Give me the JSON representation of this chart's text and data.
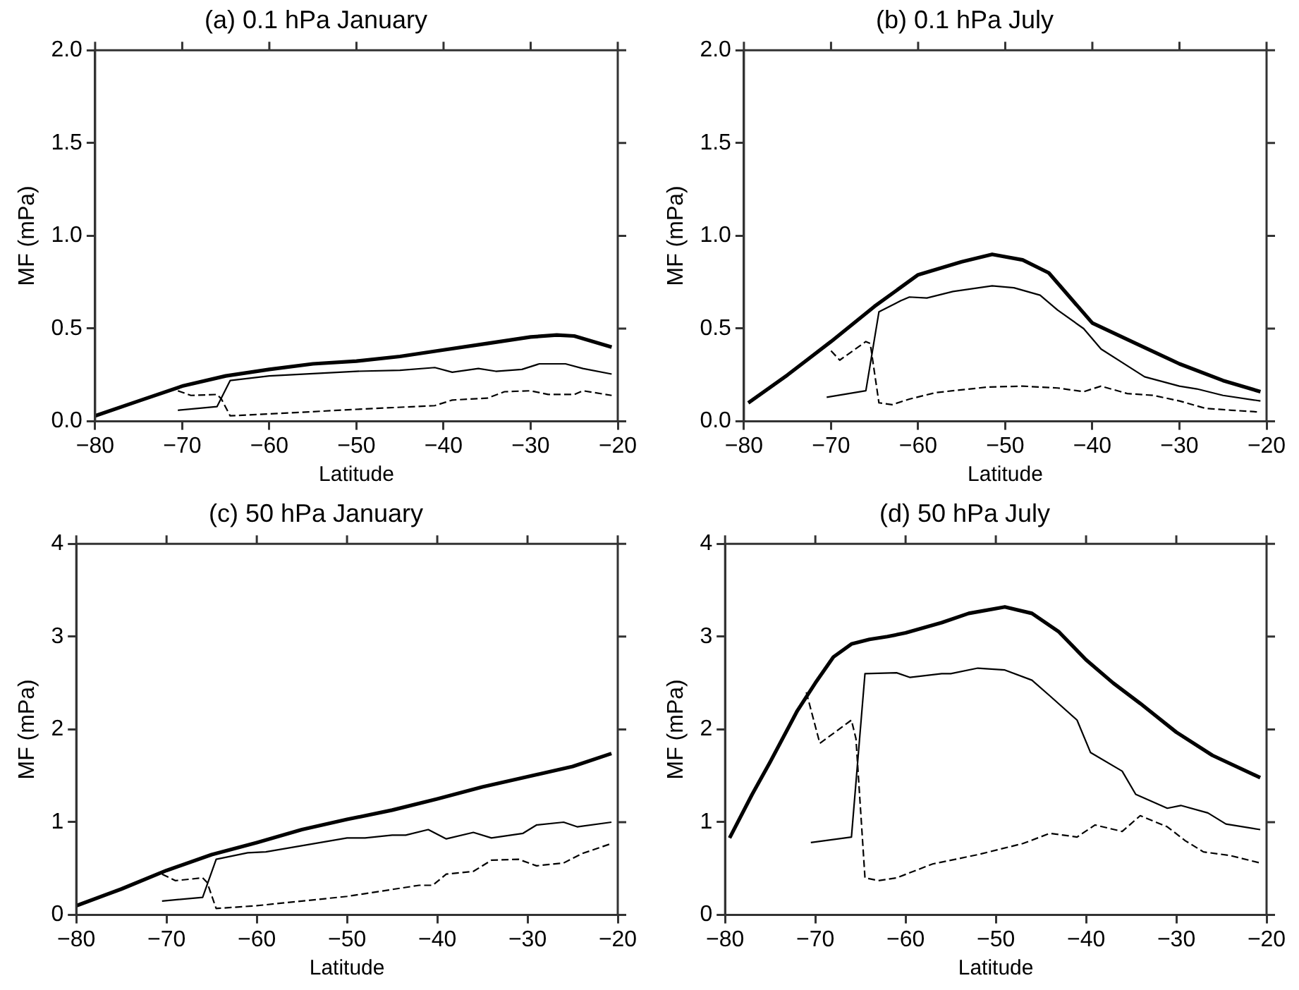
{
  "chart_data": [
    {
      "type": "line",
      "title": "(a) 0.1 hPa January",
      "xlabel": "Latitude",
      "ylabel": "MF (mPa)",
      "xlim": [
        -80,
        -20
      ],
      "ylim": [
        0,
        2
      ],
      "xticks": [
        {
          "value": -80,
          "label": "−80"
        },
        {
          "value": -70,
          "label": "−70"
        },
        {
          "value": -60,
          "label": "−60"
        },
        {
          "value": -50,
          "label": "−50"
        },
        {
          "value": -40,
          "label": "−40"
        },
        {
          "value": -30,
          "label": "−30"
        },
        {
          "value": -20,
          "label": "−20"
        }
      ],
      "yticks": [
        {
          "value": 0,
          "label": "0.0"
        },
        {
          "value": 0.5,
          "label": "0.5"
        },
        {
          "value": 1,
          "label": "1.0"
        },
        {
          "value": 1.5,
          "label": "1.5"
        },
        {
          "value": 2,
          "label": "2.0"
        }
      ],
      "grid": false,
      "legend": false,
      "marker": "none",
      "series": [
        {
          "color": "#000000",
          "line_style": "solid",
          "x": [
            -80,
            -75,
            -70,
            -65,
            -60,
            -55,
            -50,
            -45,
            -40,
            -35,
            -30,
            -27,
            -25,
            -20.7
          ],
          "values": [
            0.03,
            0.11,
            0.19,
            0.245,
            0.28,
            0.31,
            0.325,
            0.35,
            0.385,
            0.42,
            0.455,
            0.465,
            0.46,
            0.4
          ]
        },
        {
          "color": "#000000",
          "line_style": "solid",
          "x": [
            -70.5,
            -66,
            -64.5,
            -60,
            -50,
            -45,
            -41,
            -39,
            -36,
            -34,
            -31,
            -29,
            -26,
            -24,
            -20.7
          ],
          "values": [
            0.06,
            0.08,
            0.22,
            0.245,
            0.27,
            0.275,
            0.29,
            0.265,
            0.285,
            0.27,
            0.28,
            0.31,
            0.31,
            0.285,
            0.255
          ]
        },
        {
          "color": "#000000",
          "line_style": "dashed",
          "x": [
            -70.5,
            -69,
            -66,
            -65.5,
            -64.5,
            -60,
            -50,
            -41,
            -39,
            -35,
            -33,
            -30,
            -28,
            -25,
            -24,
            -20.7
          ],
          "values": [
            0.165,
            0.14,
            0.145,
            0.12,
            0.03,
            0.04,
            0.065,
            0.085,
            0.115,
            0.125,
            0.16,
            0.165,
            0.145,
            0.145,
            0.165,
            0.14
          ]
        }
      ]
    },
    {
      "type": "line",
      "title": "(b) 0.1 hPa July",
      "xlabel": "Latitude",
      "ylabel": "MF (mPa)",
      "xlim": [
        -80,
        -20
      ],
      "ylim": [
        0,
        2
      ],
      "xticks": [
        {
          "value": -80,
          "label": "−80"
        },
        {
          "value": -70,
          "label": "−70"
        },
        {
          "value": -60,
          "label": "−60"
        },
        {
          "value": -50,
          "label": "−50"
        },
        {
          "value": -40,
          "label": "−40"
        },
        {
          "value": -30,
          "label": "−30"
        },
        {
          "value": -20,
          "label": "−20"
        }
      ],
      "yticks": [
        {
          "value": 0,
          "label": "0.0"
        },
        {
          "value": 0.5,
          "label": "0.5"
        },
        {
          "value": 1,
          "label": "1.0"
        },
        {
          "value": 1.5,
          "label": "1.5"
        },
        {
          "value": 2,
          "label": "2.0"
        }
      ],
      "grid": false,
      "legend": false,
      "marker": "none",
      "series": [
        {
          "color": "#000000",
          "line_style": "solid",
          "x": [
            -79.5,
            -75,
            -70,
            -65,
            -60,
            -55,
            -51.5,
            -48,
            -45,
            -40,
            -35,
            -30,
            -25,
            -20.7
          ],
          "values": [
            0.1,
            0.25,
            0.43,
            0.62,
            0.79,
            0.86,
            0.9,
            0.87,
            0.8,
            0.53,
            0.42,
            0.31,
            0.22,
            0.16
          ]
        },
        {
          "color": "#000000",
          "line_style": "solid",
          "x": [
            -70.5,
            -66,
            -64.5,
            -62,
            -61,
            -59,
            -56,
            -51.5,
            -49,
            -46,
            -44,
            -41,
            -39,
            -36,
            -34,
            -30,
            -28,
            -25,
            -20.7
          ],
          "values": [
            0.13,
            0.165,
            0.59,
            0.65,
            0.67,
            0.665,
            0.7,
            0.73,
            0.72,
            0.68,
            0.6,
            0.5,
            0.39,
            0.3,
            0.24,
            0.19,
            0.175,
            0.14,
            0.11
          ]
        },
        {
          "color": "#000000",
          "line_style": "dashed",
          "x": [
            -70,
            -69,
            -66,
            -65.5,
            -64.5,
            -63,
            -61,
            -58,
            -52,
            -48,
            -44,
            -41,
            -39,
            -36,
            -33,
            -30,
            -27,
            -24,
            -20.7
          ],
          "values": [
            0.38,
            0.33,
            0.43,
            0.42,
            0.1,
            0.09,
            0.12,
            0.155,
            0.185,
            0.19,
            0.18,
            0.16,
            0.19,
            0.15,
            0.14,
            0.11,
            0.07,
            0.06,
            0.05
          ]
        }
      ]
    },
    {
      "type": "line",
      "title": "(c) 50 hPa January",
      "xlabel": "Latitude",
      "ylabel": "MF (mPa)",
      "xlim": [
        -80,
        -20
      ],
      "ylim": [
        0,
        4
      ],
      "xticks": [
        {
          "value": -80,
          "label": "−80"
        },
        {
          "value": -70,
          "label": "−70"
        },
        {
          "value": -60,
          "label": "−60"
        },
        {
          "value": -50,
          "label": "−50"
        },
        {
          "value": -40,
          "label": "−40"
        },
        {
          "value": -30,
          "label": "−30"
        },
        {
          "value": -20,
          "label": "−20"
        }
      ],
      "yticks": [
        0,
        1,
        2,
        3,
        4
      ],
      "grid": false,
      "legend": false,
      "marker": "none",
      "series": [
        {
          "color": "#000000",
          "line_style": "solid",
          "x": [
            -80,
            -75,
            -70,
            -65,
            -60,
            -55,
            -50,
            -45,
            -40,
            -35,
            -30,
            -25,
            -20.7
          ],
          "values": [
            0.1,
            0.28,
            0.48,
            0.65,
            0.78,
            0.92,
            1.03,
            1.13,
            1.25,
            1.38,
            1.49,
            1.6,
            1.74
          ]
        },
        {
          "color": "#000000",
          "line_style": "solid",
          "x": [
            -70.5,
            -66,
            -64.5,
            -61,
            -59,
            -50,
            -48,
            -45,
            -43.5,
            -41,
            -39,
            -36,
            -34,
            -30.5,
            -29,
            -26,
            -24.5,
            -20.7
          ],
          "values": [
            0.15,
            0.19,
            0.6,
            0.67,
            0.68,
            0.83,
            0.83,
            0.86,
            0.86,
            0.92,
            0.82,
            0.89,
            0.83,
            0.88,
            0.97,
            1.0,
            0.95,
            1.0
          ]
        },
        {
          "color": "#000000",
          "line_style": "dashed",
          "x": [
            -70.5,
            -69,
            -66,
            -65.5,
            -64.5,
            -60,
            -55,
            -50,
            -48,
            -42,
            -40.5,
            -39,
            -36,
            -34,
            -31,
            -29,
            -26,
            -24,
            -20.7
          ],
          "values": [
            0.44,
            0.37,
            0.4,
            0.35,
            0.07,
            0.1,
            0.15,
            0.2,
            0.23,
            0.32,
            0.32,
            0.44,
            0.47,
            0.59,
            0.6,
            0.53,
            0.56,
            0.66,
            0.77
          ]
        }
      ]
    },
    {
      "type": "line",
      "title": "(d) 50 hPa July",
      "xlabel": "Latitude",
      "ylabel": "MF (mPa)",
      "xlim": [
        -80,
        -20
      ],
      "ylim": [
        0,
        4
      ],
      "xticks": [
        {
          "value": -80,
          "label": "−80"
        },
        {
          "value": -70,
          "label": "−70"
        },
        {
          "value": -60,
          "label": "−60"
        },
        {
          "value": -50,
          "label": "−50"
        },
        {
          "value": -40,
          "label": "−40"
        },
        {
          "value": -30,
          "label": "−30"
        },
        {
          "value": -20,
          "label": "−20"
        }
      ],
      "yticks": [
        0,
        1,
        2,
        3,
        4
      ],
      "grid": false,
      "legend": false,
      "marker": "none",
      "series": [
        {
          "color": "#000000",
          "line_style": "solid",
          "x": [
            -79.5,
            -77,
            -75,
            -72,
            -70,
            -68,
            -66,
            -64,
            -62,
            -60,
            -56,
            -53,
            -49,
            -46,
            -43,
            -40,
            -37,
            -34,
            -30,
            -26,
            -20.7
          ],
          "values": [
            0.83,
            1.3,
            1.65,
            2.2,
            2.5,
            2.78,
            2.92,
            2.97,
            3.0,
            3.04,
            3.15,
            3.25,
            3.32,
            3.25,
            3.05,
            2.75,
            2.5,
            2.28,
            1.97,
            1.72,
            1.48
          ]
        },
        {
          "color": "#000000",
          "line_style": "solid",
          "x": [
            -70.5,
            -66,
            -64.5,
            -61,
            -59.5,
            -56,
            -55,
            -52,
            -49,
            -46,
            -44,
            -41,
            -39.5,
            -36,
            -34.5,
            -31,
            -29.5,
            -26.5,
            -24.5,
            -20.7
          ],
          "values": [
            0.78,
            0.84,
            2.6,
            2.61,
            2.56,
            2.6,
            2.6,
            2.66,
            2.64,
            2.53,
            2.36,
            2.1,
            1.75,
            1.55,
            1.3,
            1.15,
            1.18,
            1.1,
            0.98,
            0.92
          ]
        },
        {
          "color": "#000000",
          "line_style": "dashed",
          "x": [
            -71,
            -69.5,
            -66,
            -65.5,
            -64.5,
            -63,
            -61,
            -57,
            -52,
            -47,
            -44,
            -41,
            -39,
            -36,
            -34,
            -31,
            -29,
            -27,
            -24,
            -20.7
          ],
          "values": [
            2.4,
            1.85,
            2.1,
            1.9,
            0.4,
            0.37,
            0.4,
            0.55,
            0.65,
            0.77,
            0.88,
            0.84,
            0.97,
            0.9,
            1.07,
            0.95,
            0.8,
            0.68,
            0.64,
            0.56
          ]
        }
      ]
    }
  ]
}
